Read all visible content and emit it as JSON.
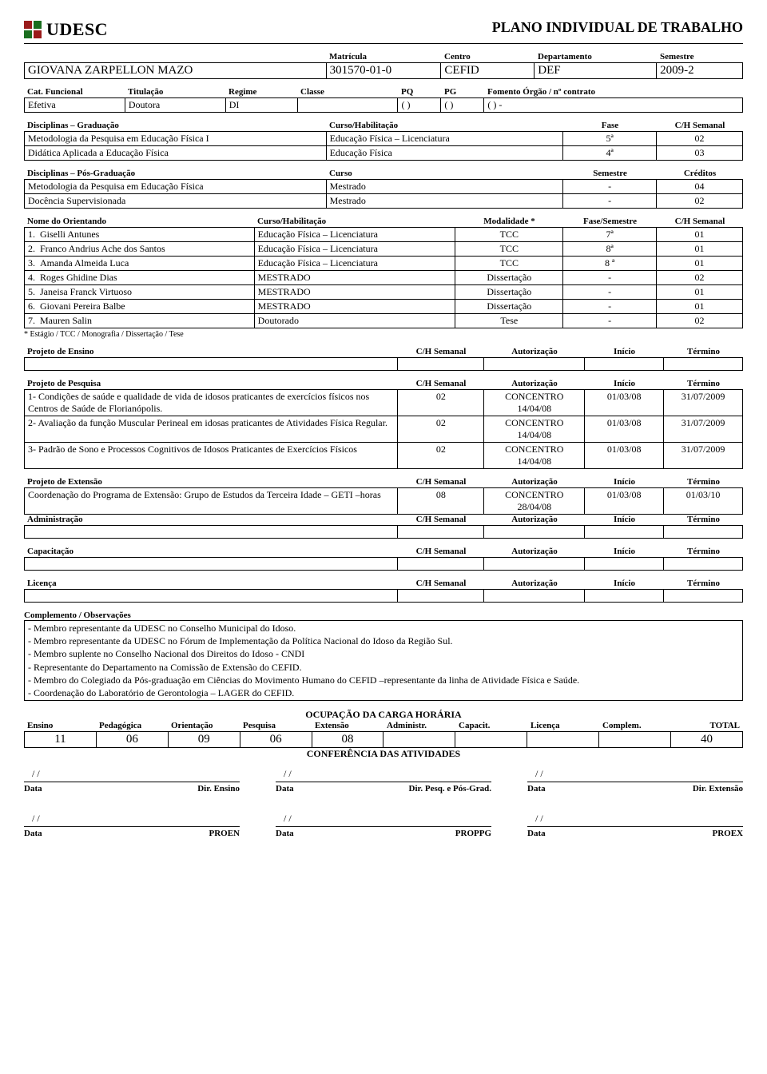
{
  "title": "PLANO INDIVIDUAL DE TRABALHO",
  "logo": {
    "text": "UDESC",
    "colors": [
      "#9a1b1b",
      "#1a6e1f",
      "#1a6e1f",
      "#9a1b1b"
    ]
  },
  "ident_labels": {
    "matricula": "Matrícula",
    "centro": "Centro",
    "departamento": "Departamento",
    "semestre": "Semestre"
  },
  "ident": {
    "nome": "GIOVANA ZARPELLON MAZO",
    "matricula": "301570-01-0",
    "centro": "CEFID",
    "departamento": "DEF",
    "semestre": "2009-2"
  },
  "cat_labels": {
    "cat": "Cat. Funcional",
    "tit": "Titulação",
    "reg": "Regime",
    "classe": "Classe",
    "pq": "PQ",
    "pg": "PG",
    "fom": "Fomento Órgão / nº contrato"
  },
  "cat": {
    "cat": "Efetiva",
    "tit": "Doutora",
    "reg": "DI",
    "classe": "",
    "pq": "(   )",
    "pg": "(   )",
    "fom": "(   ) -"
  },
  "grad": {
    "headers": {
      "disc": "Disciplinas – Graduação",
      "curso": "Curso/Habilitação",
      "fase": "Fase",
      "ch": "C/H Semanal"
    },
    "rows": [
      {
        "disc": "Metodologia da Pesquisa em Educação Física I",
        "curso": "Educação Física – Licenciatura",
        "fase": "5ª",
        "ch": "02"
      },
      {
        "disc": "Didática Aplicada a Educação Física",
        "curso": "Educação Física",
        "fase": "4ª",
        "ch": "03"
      }
    ]
  },
  "pos": {
    "headers": {
      "disc": "Disciplinas – Pós-Graduação",
      "curso": "Curso",
      "sem": "Semestre",
      "cred": "Créditos"
    },
    "rows": [
      {
        "disc": "Metodologia da Pesquisa em Educação Física",
        "curso": "Mestrado",
        "sem": "-",
        "cred": "04"
      },
      {
        "disc": "Docência Supervisionada",
        "curso": "Mestrado",
        "sem": "-",
        "cred": "02"
      }
    ]
  },
  "orient": {
    "headers": {
      "nome": "Nome do Orientando",
      "curso": "Curso/Habilitação",
      "mod": "Modalidade *",
      "fase": "Fase/Semestre",
      "ch": "C/H Semanal"
    },
    "rows": [
      {
        "n": "1.",
        "nome": "Giselli Antunes",
        "curso": "Educação Física – Licenciatura",
        "mod": "TCC",
        "fase": "7ª",
        "ch": "01"
      },
      {
        "n": "2.",
        "nome": "Franco Andrius Ache dos Santos",
        "curso": "Educação Física – Licenciatura",
        "mod": "TCC",
        "fase": "8ª",
        "ch": "01"
      },
      {
        "n": "3.",
        "nome": "Amanda Almeida Luca",
        "curso": "Educação Física – Licenciatura",
        "mod": "TCC",
        "fase": "8 ª",
        "ch": "01"
      },
      {
        "n": "4.",
        "nome": "Roges  Ghidine Dias",
        "curso": "MESTRADO",
        "mod": "Dissertação",
        "fase": "-",
        "ch": "02"
      },
      {
        "n": "5.",
        "nome": "Janeisa Franck Virtuoso",
        "curso": "MESTRADO",
        "mod": "Dissertação",
        "fase": "-",
        "ch": "01"
      },
      {
        "n": "6.",
        "nome": "Giovani Pereira Balbe",
        "curso": "MESTRADO",
        "mod": "Dissertação",
        "fase": "-",
        "ch": "01"
      },
      {
        "n": "7.",
        "nome": "Mauren Salin",
        "curso": "Doutorado",
        "mod": "Tese",
        "fase": "-",
        "ch": "02"
      }
    ],
    "note": "* Estágio / TCC / Monografia / Dissertação / Tese"
  },
  "proj_headers": {
    "ch": "C/H Semanal",
    "aut": "Autorização",
    "ini": "Início",
    "ter": "Término"
  },
  "ensino": {
    "title": "Projeto de Ensino"
  },
  "pesquisa": {
    "title": "Projeto de Pesquisa",
    "rows": [
      {
        "desc": "1- Condições de saúde e qualidade de vida de idosos praticantes de exercícios físicos nos Centros de Saúde de Florianópolis.",
        "ch": "02",
        "aut": "CONCENTRO 14/04/08",
        "ini": "01/03/08",
        "ter": "31/07/2009"
      },
      {
        "desc": "2- Avaliação da função Muscular Perineal em idosas praticantes de Atividades Física Regular.",
        "ch": "02",
        "aut": "CONCENTRO 14/04/08",
        "ini": "01/03/08",
        "ter": "31/07/2009"
      },
      {
        "desc": "3- Padrão de Sono e Processos Cognitivos de Idosos Praticantes de Exercícios Físicos",
        "ch": "02",
        "aut": "CONCENTRO 14/04/08",
        "ini": "01/03/08",
        "ter": "31/07/2009"
      }
    ]
  },
  "extensao": {
    "title": "Projeto de Extensão",
    "rows": [
      {
        "desc": "Coordenação do Programa de Extensão: Grupo de Estudos da Terceira Idade – GETI –horas",
        "ch": "08",
        "aut": "CONCENTRO 28/04/08",
        "ini": "01/03/08",
        "ter": "01/03/10"
      }
    ]
  },
  "admin": {
    "title": "Administração"
  },
  "capac": {
    "title": "Capacitação"
  },
  "licenca": {
    "title": "Licença"
  },
  "obs": {
    "title": "Complemento / Observações",
    "lines": [
      "- Membro representante da UDESC no Conselho Municipal do Idoso.",
      "- Membro representante da UDESC no Fórum de Implementação da Política Nacional do Idoso da Região Sul.",
      "- Membro suplente no Conselho Nacional dos Direitos do Idoso - CNDI",
      "- Representante do Departamento na Comissão de Extensão do CEFID.",
      "- Membro do Colegiado da Pós-graduação em Ciências do Movimento Humano do CEFID –representante da linha de Atividade Física e Saúde.",
      "- Coordenação do Laboratório de Gerontologia – LAGER do CEFID."
    ]
  },
  "occ": {
    "title": "OCUPAÇÃO DA CARGA HORÁRIA",
    "headers": [
      "Ensino",
      "Pedagógica",
      "Orientação",
      "Pesquisa",
      "Extensão",
      "Administr.",
      "Capacit.",
      "Licença",
      "Complem.",
      "TOTAL"
    ],
    "values": [
      "11",
      "06",
      "09",
      "06",
      "08",
      "",
      "",
      "",
      "",
      "40"
    ]
  },
  "conf": {
    "title": "CONFERÊNCIA DAS ATIVIDADES",
    "date": "/     /",
    "row1": [
      {
        "l": "Data",
        "r": "Dir. Ensino"
      },
      {
        "l": "Data",
        "r": "Dir. Pesq. e Pós-Grad."
      },
      {
        "l": "Data",
        "r": "Dir. Extensão"
      }
    ],
    "row2": [
      {
        "l": "Data",
        "r": "PROEN"
      },
      {
        "l": "Data",
        "r": "PROPPG"
      },
      {
        "l": "Data",
        "r": "PROEX"
      }
    ]
  }
}
